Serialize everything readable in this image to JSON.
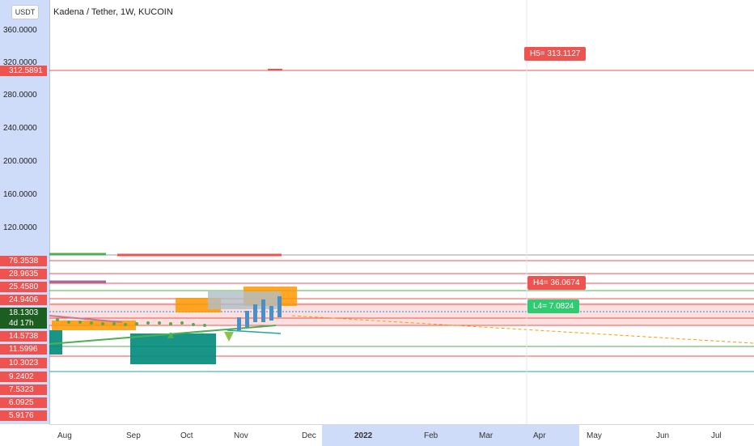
{
  "header": {
    "currency_button": "USDT",
    "title": "Kadena / Tether, 1W, KUCOIN"
  },
  "price_axis": {
    "ticks": [
      "360.0000",
      "320.0000",
      "280.0000",
      "240.0000",
      "200.0000",
      "160.0000",
      "120.0000"
    ],
    "labels": [
      {
        "text": "312.5891",
        "color": "#ef5350"
      },
      {
        "text": "76.3538",
        "color": "#ef5350"
      },
      {
        "text": "28.9635",
        "color": "#ef5350"
      },
      {
        "text": "25.4580",
        "color": "#ef5350"
      },
      {
        "text": "24.9406",
        "color": "#ef5350"
      },
      {
        "text": "18.1303",
        "color": "#1b5e20"
      },
      {
        "text": "4d 17h",
        "color": "#1b5e20"
      },
      {
        "text": "14.5738",
        "color": "#ef5350"
      },
      {
        "text": "11.5996",
        "color": "#ef5350"
      },
      {
        "text": "10.3023",
        "color": "#ef5350"
      },
      {
        "text": "9.2402",
        "color": "#ef5350"
      },
      {
        "text": "7.5323",
        "color": "#ef5350"
      },
      {
        "text": "6.0925",
        "color": "#ef5350"
      },
      {
        "text": "5.9176",
        "color": "#ef5350"
      }
    ]
  },
  "time_axis": {
    "labels": [
      "Aug",
      "Sep",
      "Oct",
      "Nov",
      "Dec",
      "2022",
      "Feb",
      "Mar",
      "Apr",
      "May",
      "Jun",
      "Jul"
    ]
  },
  "annotations": {
    "h5": "H5= 313.1127",
    "h4": "H4= 36.0674",
    "l4": "L4= 7.0824"
  },
  "chart_data": {
    "type": "line",
    "title": "Kadena / Tether, 1W, KUCOIN",
    "ylim": [
      0,
      370
    ],
    "horizontal_levels": [
      312.5891,
      76.3538,
      28.9635,
      25.458,
      24.9406,
      18.1303,
      14.5738,
      11.5996,
      10.3023,
      9.2402,
      7.5323,
      6.0925,
      5.9176
    ],
    "level_labels": {
      "H5": 313.1127,
      "H4": 36.0674,
      "L4": 7.0824
    },
    "last_price": 18.1303,
    "colors": {
      "resistance": "#ef5350",
      "support": "#26a69a",
      "current": "#1b5e20"
    }
  }
}
